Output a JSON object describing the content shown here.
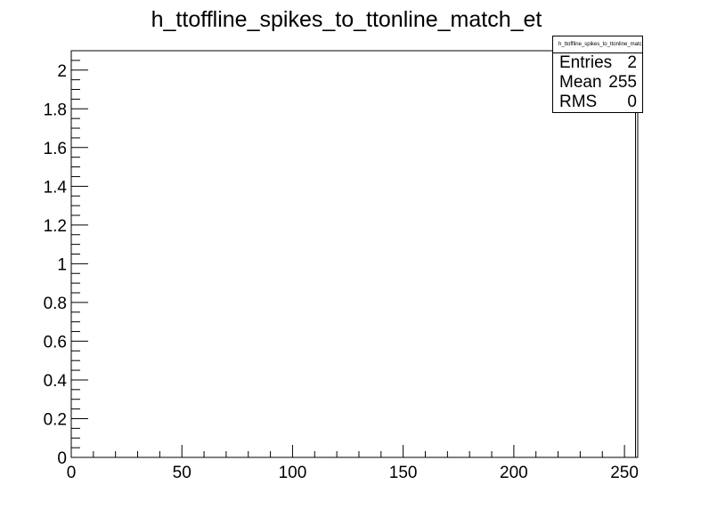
{
  "chart_data": {
    "type": "bar",
    "title": "h_ttoffline_spikes_to_ttonline_match_et",
    "xlim": [
      0,
      256
    ],
    "ylim": [
      0,
      2.1
    ],
    "x_ticks": [
      0,
      50,
      100,
      150,
      200,
      250
    ],
    "y_ticks": [
      0,
      0.2,
      0.4,
      0.6,
      0.8,
      1,
      1.2,
      1.4,
      1.6,
      1.8,
      2
    ],
    "bins": [
      {
        "low": 255,
        "high": 256,
        "count": 2
      }
    ],
    "xlabel": "",
    "ylabel": ""
  },
  "stats": {
    "title": "h_ttoffline_spikes_to_ttonline_match_et",
    "rows": [
      {
        "label": "Entries",
        "value": "2"
      },
      {
        "label": "Mean",
        "value": "255"
      },
      {
        "label": "RMS",
        "value": "0"
      }
    ]
  }
}
